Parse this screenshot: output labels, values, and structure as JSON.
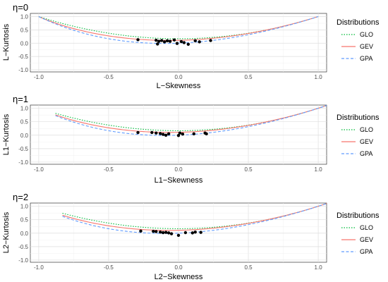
{
  "chart_data": [
    {
      "type": "line",
      "title": "η=0",
      "xlabel": "L−Skewness",
      "ylabel": "L−Kurtosis",
      "xlim": [
        -1.06,
        1.06
      ],
      "ylim": [
        -1.08,
        1.12
      ],
      "x_ticks": [
        "-1.0",
        "-0.5",
        "0.0",
        "0.5",
        "1.0"
      ],
      "y_ticks": [
        "-1.0",
        "-0.5",
        "0.0",
        "0.5",
        "1.0"
      ],
      "grid": true,
      "legend": {
        "title": "Distributions",
        "position": "right",
        "entries": [
          "GLO",
          "GEV",
          "GPA"
        ]
      },
      "curve_x_range": [
        -1.0,
        1.0
      ],
      "series": [
        {
          "name": "GLO",
          "color": "#00ba38",
          "dash": "dotted"
        },
        {
          "name": "GEV",
          "color": "#f8766d",
          "dash": "solid"
        },
        {
          "name": "GPA",
          "color": "#619cff",
          "dash": "dashed"
        }
      ],
      "points": [
        {
          "x": -0.29,
          "y": 0.13
        },
        {
          "x": -0.16,
          "y": 0.11
        },
        {
          "x": -0.14,
          "y": 0.07
        },
        {
          "x": -0.12,
          "y": 0.1
        },
        {
          "x": -0.1,
          "y": 0.05
        },
        {
          "x": -0.08,
          "y": 0.09
        },
        {
          "x": -0.06,
          "y": 0.07
        },
        {
          "x": -0.03,
          "y": 0.12
        },
        {
          "x": 0.02,
          "y": 0.06
        },
        {
          "x": 0.04,
          "y": 0.02
        },
        {
          "x": 0.12,
          "y": 0.09
        },
        {
          "x": 0.15,
          "y": 0.05
        },
        {
          "x": 0.23,
          "y": 0.1
        },
        {
          "x": -0.15,
          "y": -0.03
        },
        {
          "x": -0.01,
          "y": -0.01
        },
        {
          "x": 0.07,
          "y": -0.04
        }
      ]
    },
    {
      "type": "line",
      "title": "η=1",
      "xlabel": "L1−Skewness",
      "ylabel": "L1−Kurtosis",
      "xlim": [
        -1.06,
        1.06
      ],
      "ylim": [
        -1.08,
        1.12
      ],
      "x_ticks": [
        "-1.0",
        "-0.5",
        "0.0",
        "0.5",
        "1.0"
      ],
      "y_ticks": [
        "-1.0",
        "-0.5",
        "0.0",
        "0.5",
        "1.0"
      ],
      "grid": true,
      "legend": {
        "title": "Distributions",
        "position": "right",
        "entries": [
          "GLO",
          "GEV",
          "GPA"
        ]
      },
      "curve_x_range": [
        -0.88,
        1.06
      ],
      "series": [
        {
          "name": "GLO",
          "color": "#00ba38",
          "dash": "dotted"
        },
        {
          "name": "GEV",
          "color": "#f8766d",
          "dash": "solid"
        },
        {
          "name": "GPA",
          "color": "#619cff",
          "dash": "dashed"
        }
      ],
      "points": [
        {
          "x": -0.29,
          "y": 0.1
        },
        {
          "x": -0.19,
          "y": 0.1
        },
        {
          "x": -0.16,
          "y": 0.08
        },
        {
          "x": -0.13,
          "y": 0.06
        },
        {
          "x": -0.11,
          "y": 0.03
        },
        {
          "x": -0.09,
          "y": 0.0
        },
        {
          "x": -0.07,
          "y": 0.05
        },
        {
          "x": 0.01,
          "y": 0.08
        },
        {
          "x": 0.0,
          "y": -0.01
        },
        {
          "x": 0.03,
          "y": 0.04
        },
        {
          "x": 0.11,
          "y": 0.05
        },
        {
          "x": 0.19,
          "y": 0.08
        },
        {
          "x": 0.2,
          "y": 0.05
        }
      ]
    },
    {
      "type": "line",
      "title": "η=2",
      "xlabel": "L2−Skewness",
      "ylabel": "L2−Kurtosis",
      "xlim": [
        -1.06,
        1.06
      ],
      "ylim": [
        -1.08,
        1.12
      ],
      "x_ticks": [
        "-1.0",
        "-0.5",
        "0.0",
        "0.5",
        "1.0"
      ],
      "y_ticks": [
        "-1.0",
        "-0.5",
        "0.0",
        "0.5",
        "1.0"
      ],
      "grid": true,
      "legend": {
        "title": "Distributions",
        "position": "right",
        "entries": [
          "GLO",
          "GEV",
          "GPA"
        ]
      },
      "curve_x_range": [
        -0.83,
        1.06
      ],
      "series": [
        {
          "name": "GLO",
          "color": "#00ba38",
          "dash": "dotted"
        },
        {
          "name": "GEV",
          "color": "#f8766d",
          "dash": "solid"
        },
        {
          "name": "GPA",
          "color": "#619cff",
          "dash": "dashed"
        }
      ],
      "points": [
        {
          "x": -0.27,
          "y": 0.08
        },
        {
          "x": -0.18,
          "y": 0.07
        },
        {
          "x": -0.16,
          "y": 0.06
        },
        {
          "x": -0.13,
          "y": 0.04
        },
        {
          "x": -0.11,
          "y": 0.02
        },
        {
          "x": -0.09,
          "y": 0.03
        },
        {
          "x": -0.07,
          "y": 0.01
        },
        {
          "x": -0.05,
          "y": -0.02
        },
        {
          "x": 0.0,
          "y": -0.08
        },
        {
          "x": 0.05,
          "y": 0.02
        },
        {
          "x": 0.1,
          "y": 0.01
        },
        {
          "x": 0.12,
          "y": 0.04
        },
        {
          "x": 0.16,
          "y": 0.03
        }
      ]
    }
  ]
}
